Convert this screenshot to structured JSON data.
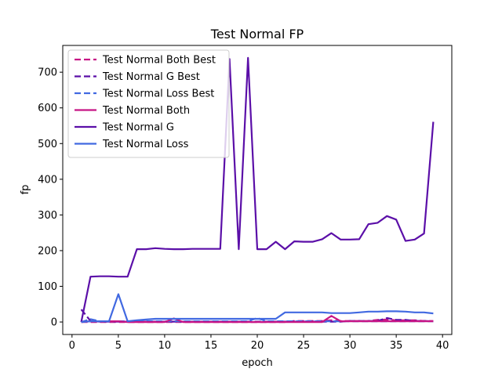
{
  "chart_data": {
    "type": "line",
    "title": "Test Normal FP",
    "xlabel": "epoch",
    "ylabel": "fp",
    "xlim": [
      -1,
      41
    ],
    "ylim": [
      -35,
      775
    ],
    "xticks": [
      0,
      5,
      10,
      15,
      20,
      25,
      30,
      35,
      40
    ],
    "yticks": [
      0,
      100,
      200,
      300,
      400,
      500,
      600,
      700
    ],
    "grid": false,
    "legend_position": "top-left",
    "x": [
      1,
      2,
      3,
      4,
      5,
      6,
      7,
      8,
      9,
      10,
      11,
      12,
      13,
      14,
      15,
      16,
      17,
      18,
      19,
      20,
      21,
      22,
      23,
      24,
      25,
      26,
      27,
      28,
      29,
      30,
      31,
      32,
      33,
      34,
      35,
      36,
      37,
      38,
      39
    ],
    "series": [
      {
        "name": "Test Normal Both Best",
        "color": "#c71585",
        "dash": "dashed",
        "values": [
          0,
          0,
          0,
          0,
          0,
          0,
          0,
          0,
          0,
          0,
          0,
          0,
          0,
          0,
          0,
          0,
          0,
          0,
          0,
          0,
          0,
          0,
          0,
          3,
          3,
          3,
          3,
          5,
          3,
          3,
          3,
          3,
          6,
          7,
          5,
          5,
          5,
          3,
          3
        ]
      },
      {
        "name": "Test Normal G Best",
        "color": "#5b0fa8",
        "dash": "dashed",
        "values": [
          35,
          3,
          1,
          1,
          1,
          1,
          1,
          1,
          1,
          1,
          1,
          1,
          1,
          1,
          1,
          1,
          1,
          1,
          1,
          1,
          1,
          1,
          1,
          1,
          1,
          1,
          1,
          1,
          1,
          3,
          3,
          3,
          3,
          11,
          6,
          6,
          3,
          3,
          2
        ]
      },
      {
        "name": "Test Normal Loss Best",
        "color": "#4169e1",
        "dash": "dashed",
        "values": [
          0,
          8,
          2,
          2,
          2,
          2,
          2,
          2,
          2,
          2,
          2,
          2,
          2,
          2,
          2,
          2,
          2,
          2,
          2,
          11,
          2,
          2,
          2,
          2,
          2,
          2,
          2,
          2,
          2,
          2,
          2,
          2,
          2,
          2,
          2,
          2,
          2,
          2,
          2
        ]
      },
      {
        "name": "Test Normal Both",
        "color": "#c71585",
        "dash": "solid",
        "values": [
          0,
          2,
          2,
          2,
          2,
          0,
          0,
          0,
          0,
          0,
          10,
          0,
          0,
          0,
          0,
          0,
          0,
          0,
          0,
          0,
          0,
          0,
          0,
          0,
          0,
          0,
          0,
          17,
          2,
          2,
          2,
          2,
          2,
          2,
          2,
          2,
          2,
          2,
          2
        ]
      },
      {
        "name": "Test Normal G",
        "color": "#5b0fa8",
        "dash": "solid",
        "values": [
          0,
          127,
          128,
          128,
          127,
          127,
          204,
          204,
          207,
          205,
          204,
          204,
          205,
          205,
          205,
          205,
          737,
          204,
          740,
          204,
          204,
          225,
          204,
          226,
          225,
          225,
          232,
          249,
          231,
          231,
          232,
          274,
          278,
          297,
          287,
          227,
          231,
          248,
          561
        ]
      },
      {
        "name": "Test Normal Loss",
        "color": "#4169e1",
        "dash": "solid",
        "values": [
          0,
          2,
          2,
          2,
          78,
          2,
          5,
          7,
          9,
          9,
          9,
          9,
          9,
          9,
          9,
          9,
          9,
          9,
          9,
          9,
          9,
          9,
          27,
          27,
          27,
          27,
          27,
          25,
          25,
          25,
          27,
          29,
          29,
          30,
          30,
          29,
          27,
          27,
          24
        ]
      }
    ]
  }
}
